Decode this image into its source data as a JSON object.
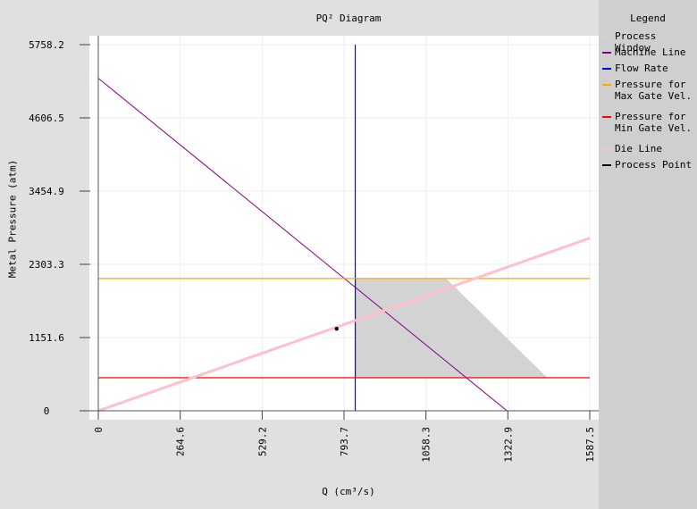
{
  "chart_data": {
    "type": "line",
    "title": "PQ² Diagram",
    "xlabel": "Q (cm³/s)",
    "ylabel": "Metal Pressure (atm)",
    "x_ticks": [
      "0",
      "264.6",
      "529.2",
      "793.7",
      "1058.3",
      "1322.9",
      "1587.5"
    ],
    "y_ticks": [
      "0",
      "1151.6",
      "2303.3",
      "3454.9",
      "4606.5",
      "5758.2"
    ],
    "x_tick_values": [
      0,
      264.6,
      529.2,
      793.7,
      1058.3,
      1322.9,
      1587.5
    ],
    "y_tick_values": [
      0,
      1151.6,
      2303.3,
      3454.9,
      4606.5,
      5758.2
    ],
    "xlim": [
      0,
      1587.5
    ],
    "ylim": [
      0,
      5758.2
    ],
    "grid": true,
    "legend_placement": "right",
    "series": [
      {
        "name": "Process Window",
        "kind": "polygon",
        "color": "#d3d3d3",
        "points": [
          [
            830,
            2080
          ],
          [
            1124,
            2080
          ],
          [
            1450,
            520
          ],
          [
            830,
            520
          ]
        ]
      },
      {
        "name": "Machine Line",
        "kind": "line",
        "color": "#800080",
        "x": [
          0,
          1320
        ],
        "y": [
          5230,
          0
        ]
      },
      {
        "name": "Flow Rate",
        "kind": "vline",
        "color": "#0000ff",
        "x": 830
      },
      {
        "name": "Pressure for\nMax Gate Vel.",
        "kind": "hline",
        "color": "#ffa500",
        "y": 2080
      },
      {
        "name": "Pressure for\nMin Gate Vel.",
        "kind": "hline",
        "color": "#ff0000",
        "y": 520
      },
      {
        "name": "Die Line",
        "kind": "line",
        "color": "#ffc0cb",
        "x": [
          0,
          1587.5
        ],
        "y": [
          0,
          2715
        ]
      },
      {
        "name": "Process Point",
        "kind": "point",
        "color": "#000000",
        "x": [
          770
        ],
        "y": [
          1290
        ]
      }
    ]
  },
  "legend": {
    "title": "Legend",
    "items": [
      {
        "label": "Process Window",
        "color": "#d3d3d3"
      },
      {
        "label": "Machine Line",
        "color": "#800080"
      },
      {
        "label": "Flow Rate",
        "color": "#0000ff"
      },
      {
        "label": "Pressure for\nMax Gate Vel.",
        "color": "#ffa500"
      },
      {
        "label": "Pressure for\nMin Gate Vel.",
        "color": "#ff0000"
      },
      {
        "label": "Die Line",
        "color": "#ffc0cb"
      },
      {
        "label": "Process Point",
        "color": "#000000"
      }
    ]
  }
}
